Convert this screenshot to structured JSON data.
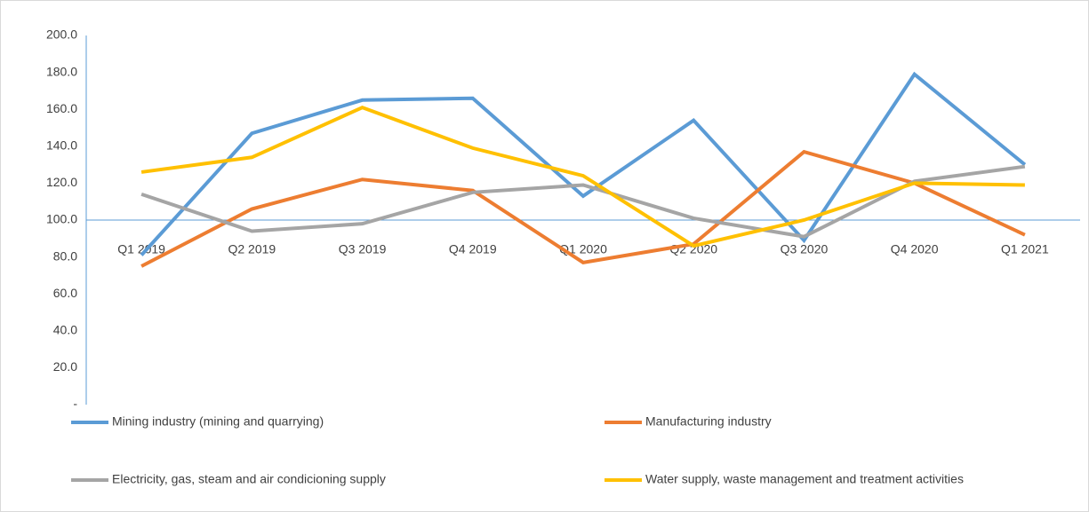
{
  "chart_data": {
    "type": "line",
    "categories": [
      "Q1 2019",
      "Q2 2019",
      "Q3 2019",
      "Q4 2019",
      "Q1 2020",
      "Q2 2020",
      "Q3 2020",
      "Q4 2020",
      "Q1 2021"
    ],
    "series": [
      {
        "name": "Mining industry (mining and quarrying)",
        "color": "#5b9bd5",
        "values": [
          81,
          147,
          165,
          166,
          113,
          154,
          89,
          179,
          130
        ]
      },
      {
        "name": "Manufacturing industry",
        "color": "#ed7d31",
        "values": [
          75,
          106,
          122,
          116,
          77,
          87,
          137,
          120,
          92
        ]
      },
      {
        "name": "Electricity, gas, steam and air condicioning supply",
        "color": "#a5a5a5",
        "values": [
          114,
          94,
          98,
          115,
          119,
          101,
          91,
          121,
          129
        ]
      },
      {
        "name": "Water supply, waste management and treatment activities",
        "color": "#ffc000",
        "values": [
          126,
          134,
          161,
          139,
          124,
          86,
          100,
          120,
          119
        ]
      }
    ],
    "ylim": [
      0,
      200
    ],
    "yticks": [
      {
        "value": 0,
        "label": "-"
      },
      {
        "value": 20,
        "label": "20.0"
      },
      {
        "value": 40,
        "label": "40.0"
      },
      {
        "value": 60,
        "label": "60.0"
      },
      {
        "value": 80,
        "label": "80.0"
      },
      {
        "value": 100,
        "label": "100.0"
      },
      {
        "value": 120,
        "label": "120.0"
      },
      {
        "value": 140,
        "label": "140.0"
      },
      {
        "value": 160,
        "label": "160.0"
      },
      {
        "value": 180,
        "label": "180.0"
      },
      {
        "value": 200,
        "label": "200.0"
      }
    ],
    "category_axis_crosses_at": 100,
    "grid": false,
    "legend": "bottom"
  }
}
